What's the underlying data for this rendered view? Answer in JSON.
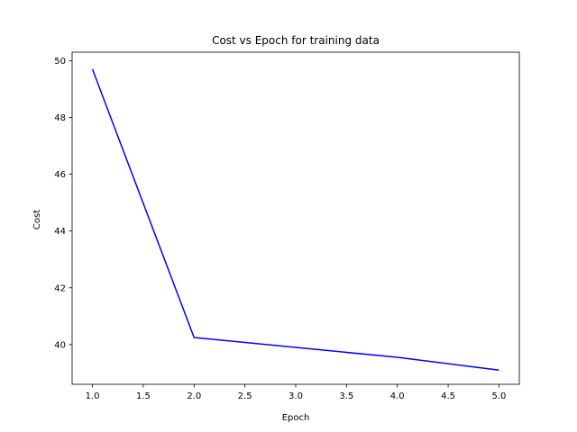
{
  "chart_data": {
    "type": "line",
    "title": "Cost vs Epoch for training data",
    "xlabel": "Epoch",
    "ylabel": "Cost",
    "xlim": [
      0.8,
      5.2
    ],
    "ylim": [
      38.6,
      50.3
    ],
    "xticks": [
      1.0,
      1.5,
      2.0,
      2.5,
      3.0,
      3.5,
      4.0,
      4.5,
      5.0
    ],
    "xtick_labels": [
      "1.0",
      "1.5",
      "2.0",
      "2.5",
      "3.0",
      "3.5",
      "4.0",
      "4.5",
      "5.0"
    ],
    "yticks": [
      40,
      42,
      44,
      46,
      48,
      50
    ],
    "ytick_labels": [
      "40",
      "42",
      "44",
      "46",
      "48",
      "50"
    ],
    "grid": false,
    "series": [
      {
        "color": "#0000ff",
        "x": [
          1,
          2,
          3,
          4,
          5
        ],
        "y": [
          49.7,
          40.25,
          39.9,
          39.55,
          39.1
        ]
      }
    ]
  }
}
